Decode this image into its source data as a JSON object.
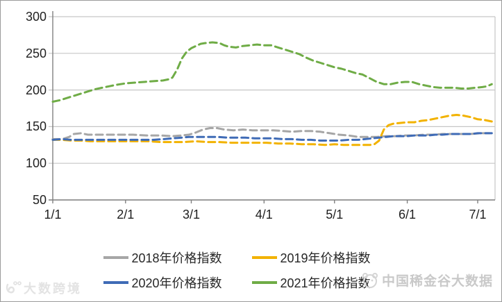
{
  "watermarks": {
    "bottom_left": {
      "text": "大数跨境"
    },
    "bottom_right": {
      "text": "中国稀金谷大数据"
    }
  },
  "chart_data": {
    "type": "line",
    "title": "",
    "xlabel": "",
    "ylabel": "",
    "x_unit": "month/day (day offset from 1/1)",
    "x_ticks": [
      "1/1",
      "2/1",
      "3/1",
      "4/1",
      "5/1",
      "6/1",
      "7/1"
    ],
    "x_tick_days": [
      0,
      31,
      59,
      90,
      120,
      151,
      181
    ],
    "y_ticks": [
      300,
      250,
      200,
      150,
      100,
      50
    ],
    "ylim": [
      50,
      300
    ],
    "grid": "horizontal",
    "line_style": "dashed",
    "legend_position": "bottom",
    "axis_color": "#808080",
    "gridline_color": "#c6c6c6",
    "series": [
      {
        "name": "2018年价格指数",
        "color": "#A6A6A6",
        "points": [
          [
            0,
            133
          ],
          [
            4,
            133
          ],
          [
            7,
            136
          ],
          [
            9,
            140
          ],
          [
            12,
            141
          ],
          [
            15,
            139
          ],
          [
            19,
            139
          ],
          [
            24,
            139
          ],
          [
            29,
            139
          ],
          [
            34,
            139
          ],
          [
            40,
            138
          ],
          [
            46,
            138
          ],
          [
            51,
            137
          ],
          [
            55,
            138
          ],
          [
            58,
            139
          ],
          [
            61,
            142
          ],
          [
            64,
            146
          ],
          [
            67,
            148
          ],
          [
            70,
            148
          ],
          [
            73,
            146
          ],
          [
            77,
            145
          ],
          [
            81,
            146
          ],
          [
            85,
            145
          ],
          [
            90,
            145
          ],
          [
            94,
            145
          ],
          [
            98,
            144
          ],
          [
            102,
            143
          ],
          [
            106,
            144
          ],
          [
            110,
            144
          ],
          [
            114,
            143
          ],
          [
            118,
            141
          ],
          [
            122,
            139
          ],
          [
            126,
            138
          ],
          [
            130,
            136
          ],
          [
            134,
            136
          ],
          [
            138,
            136
          ],
          [
            142,
            137
          ],
          [
            146,
            137
          ],
          [
            150,
            138
          ],
          [
            154,
            138
          ],
          [
            158,
            139
          ],
          [
            162,
            139
          ],
          [
            166,
            140
          ],
          [
            170,
            140
          ],
          [
            174,
            140
          ],
          [
            178,
            140
          ],
          [
            182,
            141
          ],
          [
            187,
            141
          ]
        ]
      },
      {
        "name": "2019年价格指数",
        "color": "#F2B200",
        "points": [
          [
            0,
            132
          ],
          [
            4,
            132
          ],
          [
            8,
            131
          ],
          [
            12,
            131
          ],
          [
            16,
            130
          ],
          [
            21,
            130
          ],
          [
            26,
            130
          ],
          [
            31,
            130
          ],
          [
            36,
            130
          ],
          [
            41,
            130
          ],
          [
            46,
            129
          ],
          [
            51,
            129
          ],
          [
            56,
            129
          ],
          [
            61,
            130
          ],
          [
            66,
            129
          ],
          [
            71,
            129
          ],
          [
            76,
            128
          ],
          [
            81,
            128
          ],
          [
            86,
            128
          ],
          [
            91,
            128
          ],
          [
            96,
            127
          ],
          [
            101,
            127
          ],
          [
            106,
            126
          ],
          [
            111,
            126
          ],
          [
            116,
            125
          ],
          [
            120,
            126
          ],
          [
            124,
            125
          ],
          [
            128,
            125
          ],
          [
            132,
            125
          ],
          [
            135,
            125
          ],
          [
            137,
            126
          ],
          [
            139,
            131
          ],
          [
            141,
            146
          ],
          [
            143,
            152
          ],
          [
            145,
            154
          ],
          [
            148,
            155
          ],
          [
            151,
            156
          ],
          [
            154,
            156
          ],
          [
            157,
            158
          ],
          [
            160,
            159
          ],
          [
            163,
            161
          ],
          [
            166,
            163
          ],
          [
            169,
            165
          ],
          [
            172,
            166
          ],
          [
            175,
            165
          ],
          [
            178,
            163
          ],
          [
            181,
            160
          ],
          [
            184,
            159
          ],
          [
            187,
            157
          ]
        ]
      },
      {
        "name": "2020年价格指数",
        "color": "#3F6BB6",
        "points": [
          [
            0,
            132
          ],
          [
            4,
            133
          ],
          [
            8,
            132
          ],
          [
            13,
            132
          ],
          [
            18,
            132
          ],
          [
            23,
            132
          ],
          [
            28,
            132
          ],
          [
            33,
            132
          ],
          [
            38,
            132
          ],
          [
            43,
            132
          ],
          [
            47,
            133
          ],
          [
            51,
            134
          ],
          [
            55,
            135
          ],
          [
            58,
            136
          ],
          [
            62,
            136
          ],
          [
            66,
            136
          ],
          [
            70,
            136
          ],
          [
            74,
            135
          ],
          [
            78,
            135
          ],
          [
            82,
            135
          ],
          [
            86,
            134
          ],
          [
            90,
            134
          ],
          [
            94,
            134
          ],
          [
            98,
            133
          ],
          [
            102,
            133
          ],
          [
            106,
            132
          ],
          [
            110,
            132
          ],
          [
            114,
            131
          ],
          [
            118,
            131
          ],
          [
            122,
            131
          ],
          [
            126,
            132
          ],
          [
            130,
            132
          ],
          [
            133,
            133
          ],
          [
            136,
            134
          ],
          [
            139,
            135
          ],
          [
            142,
            136
          ],
          [
            145,
            137
          ],
          [
            148,
            137
          ],
          [
            151,
            137
          ],
          [
            154,
            138
          ],
          [
            157,
            138
          ],
          [
            160,
            138
          ],
          [
            163,
            139
          ],
          [
            166,
            139
          ],
          [
            169,
            140
          ],
          [
            172,
            140
          ],
          [
            175,
            140
          ],
          [
            178,
            140
          ],
          [
            181,
            141
          ],
          [
            184,
            141
          ],
          [
            187,
            141
          ]
        ]
      },
      {
        "name": "2021年价格指数",
        "color": "#6FAC46",
        "points": [
          [
            0,
            184
          ],
          [
            3,
            186
          ],
          [
            6,
            189
          ],
          [
            9,
            192
          ],
          [
            12,
            195
          ],
          [
            15,
            198
          ],
          [
            18,
            201
          ],
          [
            21,
            203
          ],
          [
            24,
            205
          ],
          [
            27,
            207
          ],
          [
            31,
            209
          ],
          [
            35,
            210
          ],
          [
            39,
            211
          ],
          [
            43,
            212
          ],
          [
            47,
            213
          ],
          [
            50,
            215
          ],
          [
            51,
            217
          ],
          [
            53,
            228
          ],
          [
            55,
            243
          ],
          [
            57,
            252
          ],
          [
            59,
            257
          ],
          [
            61,
            260
          ],
          [
            63,
            263
          ],
          [
            65,
            264
          ],
          [
            68,
            265
          ],
          [
            71,
            264
          ],
          [
            73,
            261
          ],
          [
            75,
            259
          ],
          [
            78,
            258
          ],
          [
            81,
            260
          ],
          [
            84,
            261
          ],
          [
            87,
            262
          ],
          [
            90,
            261
          ],
          [
            93,
            261
          ],
          [
            96,
            258
          ],
          [
            99,
            255
          ],
          [
            102,
            252
          ],
          [
            105,
            249
          ],
          [
            108,
            244
          ],
          [
            111,
            240
          ],
          [
            114,
            237
          ],
          [
            117,
            234
          ],
          [
            120,
            231
          ],
          [
            123,
            229
          ],
          [
            126,
            226
          ],
          [
            129,
            223
          ],
          [
            132,
            221
          ],
          [
            135,
            216
          ],
          [
            138,
            211
          ],
          [
            141,
            208
          ],
          [
            144,
            208
          ],
          [
            147,
            210
          ],
          [
            150,
            211
          ],
          [
            153,
            211
          ],
          [
            156,
            208
          ],
          [
            159,
            206
          ],
          [
            162,
            204
          ],
          [
            165,
            203
          ],
          [
            168,
            203
          ],
          [
            171,
            203
          ],
          [
            174,
            202
          ],
          [
            177,
            202
          ],
          [
            180,
            203
          ],
          [
            183,
            204
          ],
          [
            185,
            205
          ],
          [
            187,
            208
          ]
        ]
      }
    ]
  }
}
